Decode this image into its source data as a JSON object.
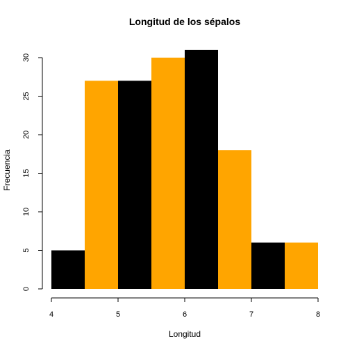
{
  "chart_data": {
    "type": "bar",
    "title": "Longitud de los sépalos",
    "xlabel": "Longitud",
    "ylabel": "Frecuencia",
    "bins": [
      {
        "from": 4.0,
        "to": 4.5,
        "count": 5,
        "color": "#000000"
      },
      {
        "from": 4.5,
        "to": 5.0,
        "count": 27,
        "color": "#FFA500"
      },
      {
        "from": 5.0,
        "to": 5.5,
        "count": 27,
        "color": "#000000"
      },
      {
        "from": 5.5,
        "to": 6.0,
        "count": 30,
        "color": "#FFA500"
      },
      {
        "from": 6.0,
        "to": 6.5,
        "count": 31,
        "color": "#000000"
      },
      {
        "from": 6.5,
        "to": 7.0,
        "count": 18,
        "color": "#FFA500"
      },
      {
        "from": 7.0,
        "to": 7.5,
        "count": 6,
        "color": "#000000"
      },
      {
        "from": 7.5,
        "to": 8.0,
        "count": 6,
        "color": "#FFA500"
      }
    ],
    "xlim": [
      4,
      8
    ],
    "ylim": [
      0,
      31
    ],
    "xticks": [
      "4",
      "5",
      "6",
      "7",
      "8"
    ],
    "yticks": [
      "0",
      "5",
      "10",
      "15",
      "20",
      "25",
      "30"
    ],
    "grid": false,
    "legend": "none"
  }
}
